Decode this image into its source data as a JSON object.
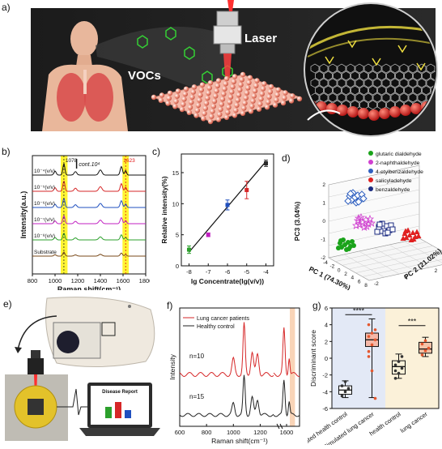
{
  "panel_labels": {
    "a": "a)",
    "b": "b)",
    "c": "c)",
    "d": "d)",
    "e": "e)",
    "f": "f)",
    "g": "g)"
  },
  "panel_a": {
    "vocs_label": "VOCs",
    "laser_label": "Laser"
  },
  "panel_e": {
    "report_title": "Disease Report"
  },
  "chart_data": [
    {
      "id": "b",
      "type": "line",
      "xlabel": "Raman shift(cm⁻¹)",
      "ylabel": "Intensity(a.u.)",
      "x_ticks": [
        "800",
        "1000",
        "1200",
        "1400",
        "1600",
        "1800"
      ],
      "xlim": [
        800,
        1800
      ],
      "peak_labels": [
        "1078",
        "1623"
      ],
      "scale_label": "cont.10⁴",
      "series": [
        {
          "name": "10⁻⁴(v/v)",
          "color": "#111111"
        },
        {
          "name": "10⁻⁵(v/v)",
          "color": "#d62728"
        },
        {
          "name": "10⁻⁶(v/v)",
          "color": "#1f4fbf"
        },
        {
          "name": "10⁻⁷(v/v)",
          "color": "#c020c0"
        },
        {
          "name": "10⁻⁸(v/v)",
          "color": "#2ca02c"
        },
        {
          "name": "Substrate",
          "color": "#7a4a1a"
        }
      ]
    },
    {
      "id": "c",
      "type": "scatter",
      "xlabel": "lg Concentrate(lg(v/v))",
      "ylabel": "Relative intensity(%)",
      "x_ticks": [
        "-8",
        "-7",
        "-6",
        "-5",
        "-4"
      ],
      "y_ticks": [
        "0",
        "5",
        "10",
        "15"
      ],
      "xlim": [
        -8.4,
        -3.6
      ],
      "ylim": [
        0,
        18
      ],
      "x": [
        -8,
        -7,
        -6,
        -5,
        -4
      ],
      "y": [
        2.6,
        5.0,
        9.8,
        12.2,
        16.5
      ],
      "err": [
        0.6,
        0.3,
        0.8,
        1.4,
        0.5
      ],
      "colors": [
        "#2ca02c",
        "#c020c0",
        "#1f4fbf",
        "#d62728",
        "#2a2a2a"
      ],
      "fit": [
        [
          -8,
          2.2
        ],
        [
          -4,
          16.8
        ]
      ]
    },
    {
      "id": "d",
      "type": "scatter",
      "xlabel": "PC 1 (74.30%)",
      "ylabel": "PC3 (3.04%)",
      "zlabel": "PC 2 (21.02%)",
      "x_ticks": [
        "-4",
        "-2",
        "0",
        "2",
        "4",
        "6",
        "8"
      ],
      "y_ticks": [
        "-2",
        "-1",
        "0",
        "1",
        "2"
      ],
      "z_ticks": [
        "-2",
        "0",
        "2",
        "4"
      ],
      "legend": [
        {
          "name": "glutaric dialdehyde",
          "color": "#1aa31a"
        },
        {
          "name": "2-naphthaldehyde",
          "color": "#d040d0"
        },
        {
          "name": "4-etylbenzaldehyde",
          "color": "#3060c0"
        },
        {
          "name": "salicyladehyde",
          "color": "#e02020"
        },
        {
          "name": "benzaldehyde",
          "color": "#1a2a80"
        }
      ]
    },
    {
      "id": "f",
      "type": "line",
      "xlabel": "Raman shift(cm⁻¹)",
      "ylabel": "Intensity",
      "x_ticks": [
        "600",
        "800",
        "1000",
        "1200",
        "1600"
      ],
      "series": [
        {
          "name": "Lung cancer patients",
          "color": "#d62728",
          "count_label": "n=10"
        },
        {
          "name": "Healthy control",
          "color": "#222222",
          "count_label": "n=15"
        }
      ]
    },
    {
      "id": "g",
      "type": "box",
      "ylabel": "Discriminant score",
      "y_ticks": [
        "-6",
        "-4",
        "-2",
        "0",
        "2",
        "4",
        "6"
      ],
      "ylim": [
        -6,
        6
      ],
      "categories": [
        "Simulated health control",
        "Simulated lung cancer",
        "health control",
        "lung cancer"
      ],
      "medians": [
        -3.8,
        2.2,
        -1.0,
        1.1
      ],
      "q1": [
        -4.3,
        1.4,
        -1.9,
        0.6
      ],
      "q3": [
        -3.3,
        3.0,
        -0.3,
        1.9
      ],
      "whisker_low": [
        -4.7,
        -4.7,
        -2.4,
        0.2
      ],
      "whisker_high": [
        -2.7,
        4.7,
        0.5,
        2.5
      ],
      "box_colors": [
        "#ffffff",
        "#f5b8a8",
        "#f8f1d8",
        "#f3c3a8"
      ],
      "significance": [
        "****",
        "***"
      ]
    }
  ]
}
